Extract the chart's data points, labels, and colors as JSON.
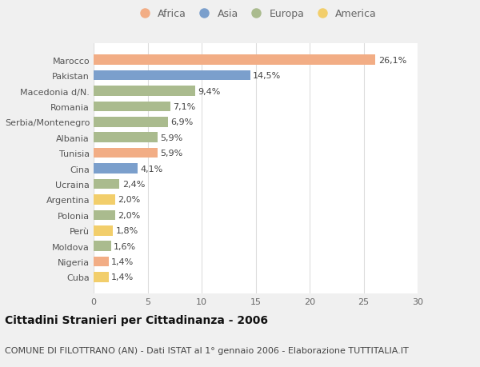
{
  "countries": [
    "Cuba",
    "Nigeria",
    "Moldova",
    "Perù",
    "Polonia",
    "Argentina",
    "Ucraina",
    "Cina",
    "Tunisia",
    "Albania",
    "Serbia/Montenegro",
    "Romania",
    "Macedonia d/N.",
    "Pakistan",
    "Marocco"
  ],
  "values": [
    1.4,
    1.4,
    1.6,
    1.8,
    2.0,
    2.0,
    2.4,
    4.1,
    5.9,
    5.9,
    6.9,
    7.1,
    9.4,
    14.5,
    26.1
  ],
  "labels": [
    "1,4%",
    "1,4%",
    "1,6%",
    "1,8%",
    "2,0%",
    "2,0%",
    "2,4%",
    "4,1%",
    "5,9%",
    "5,9%",
    "6,9%",
    "7,1%",
    "9,4%",
    "14,5%",
    "26,1%"
  ],
  "continents": [
    "America",
    "Africa",
    "Europa",
    "America",
    "Europa",
    "America",
    "Europa",
    "Asia",
    "Africa",
    "Europa",
    "Europa",
    "Europa",
    "Europa",
    "Asia",
    "Africa"
  ],
  "continent_colors": {
    "Africa": "#F2AD85",
    "Asia": "#7B9FCC",
    "Europa": "#AABB8E",
    "America": "#F2CE6B"
  },
  "legend_order": [
    "Africa",
    "Asia",
    "Europa",
    "America"
  ],
  "xlim": [
    0,
    30
  ],
  "xticks": [
    0,
    5,
    10,
    15,
    20,
    25,
    30
  ],
  "title": "Cittadini Stranieri per Cittadinanza - 2006",
  "subtitle": "COMUNE DI FILOTTRANO (AN) - Dati ISTAT al 1° gennaio 2006 - Elaborazione TUTTITALIA.IT",
  "bg_color": "#f0f0f0",
  "plot_bg_color": "#ffffff",
  "grid_color": "#dddddd",
  "title_fontsize": 10,
  "subtitle_fontsize": 8,
  "label_fontsize": 8,
  "tick_fontsize": 8,
  "legend_fontsize": 9,
  "bar_height": 0.65
}
